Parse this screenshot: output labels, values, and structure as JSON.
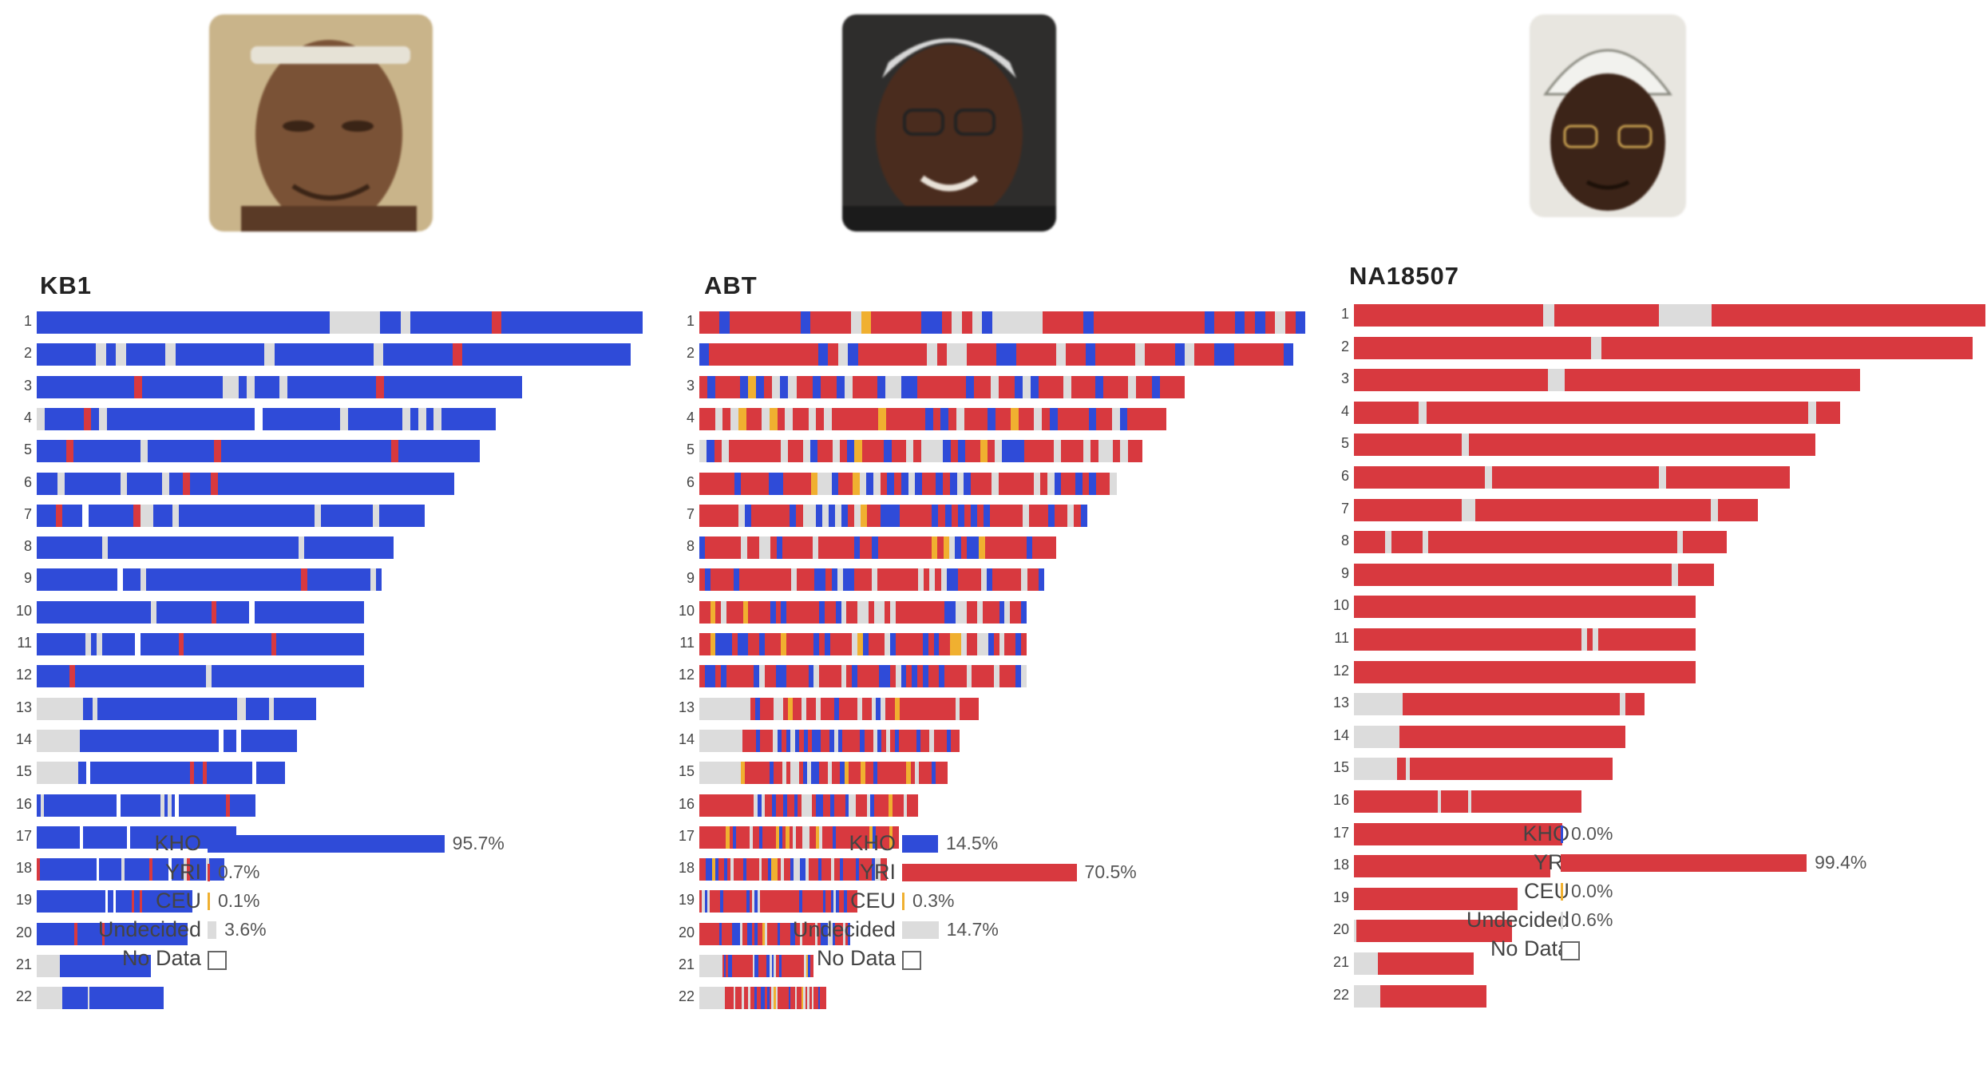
{
  "colors": {
    "KHO": "#2f4bd8",
    "YRI": "#d8393f",
    "CEU": "#f0b030",
    "Undecided": "#dcdcdc",
    "NoData": "#ffffff"
  },
  "portraits": [
    {
      "name": "elderly-man-headband-portrait",
      "skin": "#7a5236",
      "bg": "#c9b48a"
    },
    {
      "name": "man-glasses-grey-hair-portrait",
      "skin": "#4a2c1e",
      "bg": "#2e2d2c"
    },
    {
      "name": "man-patterned-cap-glasses-portrait",
      "skin": "#3c2418",
      "bg": "#e8e6e0"
    }
  ],
  "chart_data": [
    {
      "type": "bar",
      "title": "KB1",
      "chromosomes": [
        "1",
        "2",
        "3",
        "4",
        "5",
        "6",
        "7",
        "8",
        "9",
        "10",
        "11",
        "12",
        "13",
        "14",
        "15",
        "16",
        "17",
        "18",
        "19",
        "20",
        "21",
        "22"
      ],
      "dominant_ancestry": "KHO",
      "legend": [
        {
          "label": "KHO",
          "value": "95.7%",
          "pct": 95.7
        },
        {
          "label": "YRI",
          "value": "0.7%",
          "pct": 0.7
        },
        {
          "label": "CEU",
          "value": "0.1%",
          "pct": 0.1
        },
        {
          "label": "Undecided",
          "value": "3.6%",
          "pct": 3.6
        },
        {
          "label": "No Data",
          "value": "",
          "pct": 0
        }
      ]
    },
    {
      "type": "bar",
      "title": "ABT",
      "chromosomes": [
        "1",
        "2",
        "3",
        "4",
        "5",
        "6",
        "7",
        "8",
        "9",
        "10",
        "11",
        "12",
        "13",
        "14",
        "15",
        "16",
        "17",
        "18",
        "19",
        "20",
        "21",
        "22"
      ],
      "dominant_ancestry": "YRI",
      "legend": [
        {
          "label": "KHO",
          "value": "14.5%",
          "pct": 14.5
        },
        {
          "label": "YRI",
          "value": "70.5%",
          "pct": 70.5
        },
        {
          "label": "CEU",
          "value": "0.3%",
          "pct": 0.3
        },
        {
          "label": "Undecided",
          "value": "14.7%",
          "pct": 14.7
        },
        {
          "label": "No Data",
          "value": "",
          "pct": 0
        }
      ]
    },
    {
      "type": "bar",
      "title": "NA18507",
      "chromosomes": [
        "1",
        "2",
        "3",
        "4",
        "5",
        "6",
        "7",
        "8",
        "9",
        "10",
        "11",
        "12",
        "13",
        "14",
        "15",
        "16",
        "17",
        "18",
        "19",
        "20",
        "21",
        "22"
      ],
      "dominant_ancestry": "YRI",
      "legend": [
        {
          "label": "KHO",
          "value": "0.0%",
          "pct": 0.0
        },
        {
          "label": "YRI",
          "value": "99.4%",
          "pct": 99.4
        },
        {
          "label": "CEU",
          "value": "0.0%",
          "pct": 0.0
        },
        {
          "label": "Undecided",
          "value": "0.6%",
          "pct": 0.6
        },
        {
          "label": "No Data",
          "value": "",
          "pct": 0
        }
      ]
    }
  ]
}
